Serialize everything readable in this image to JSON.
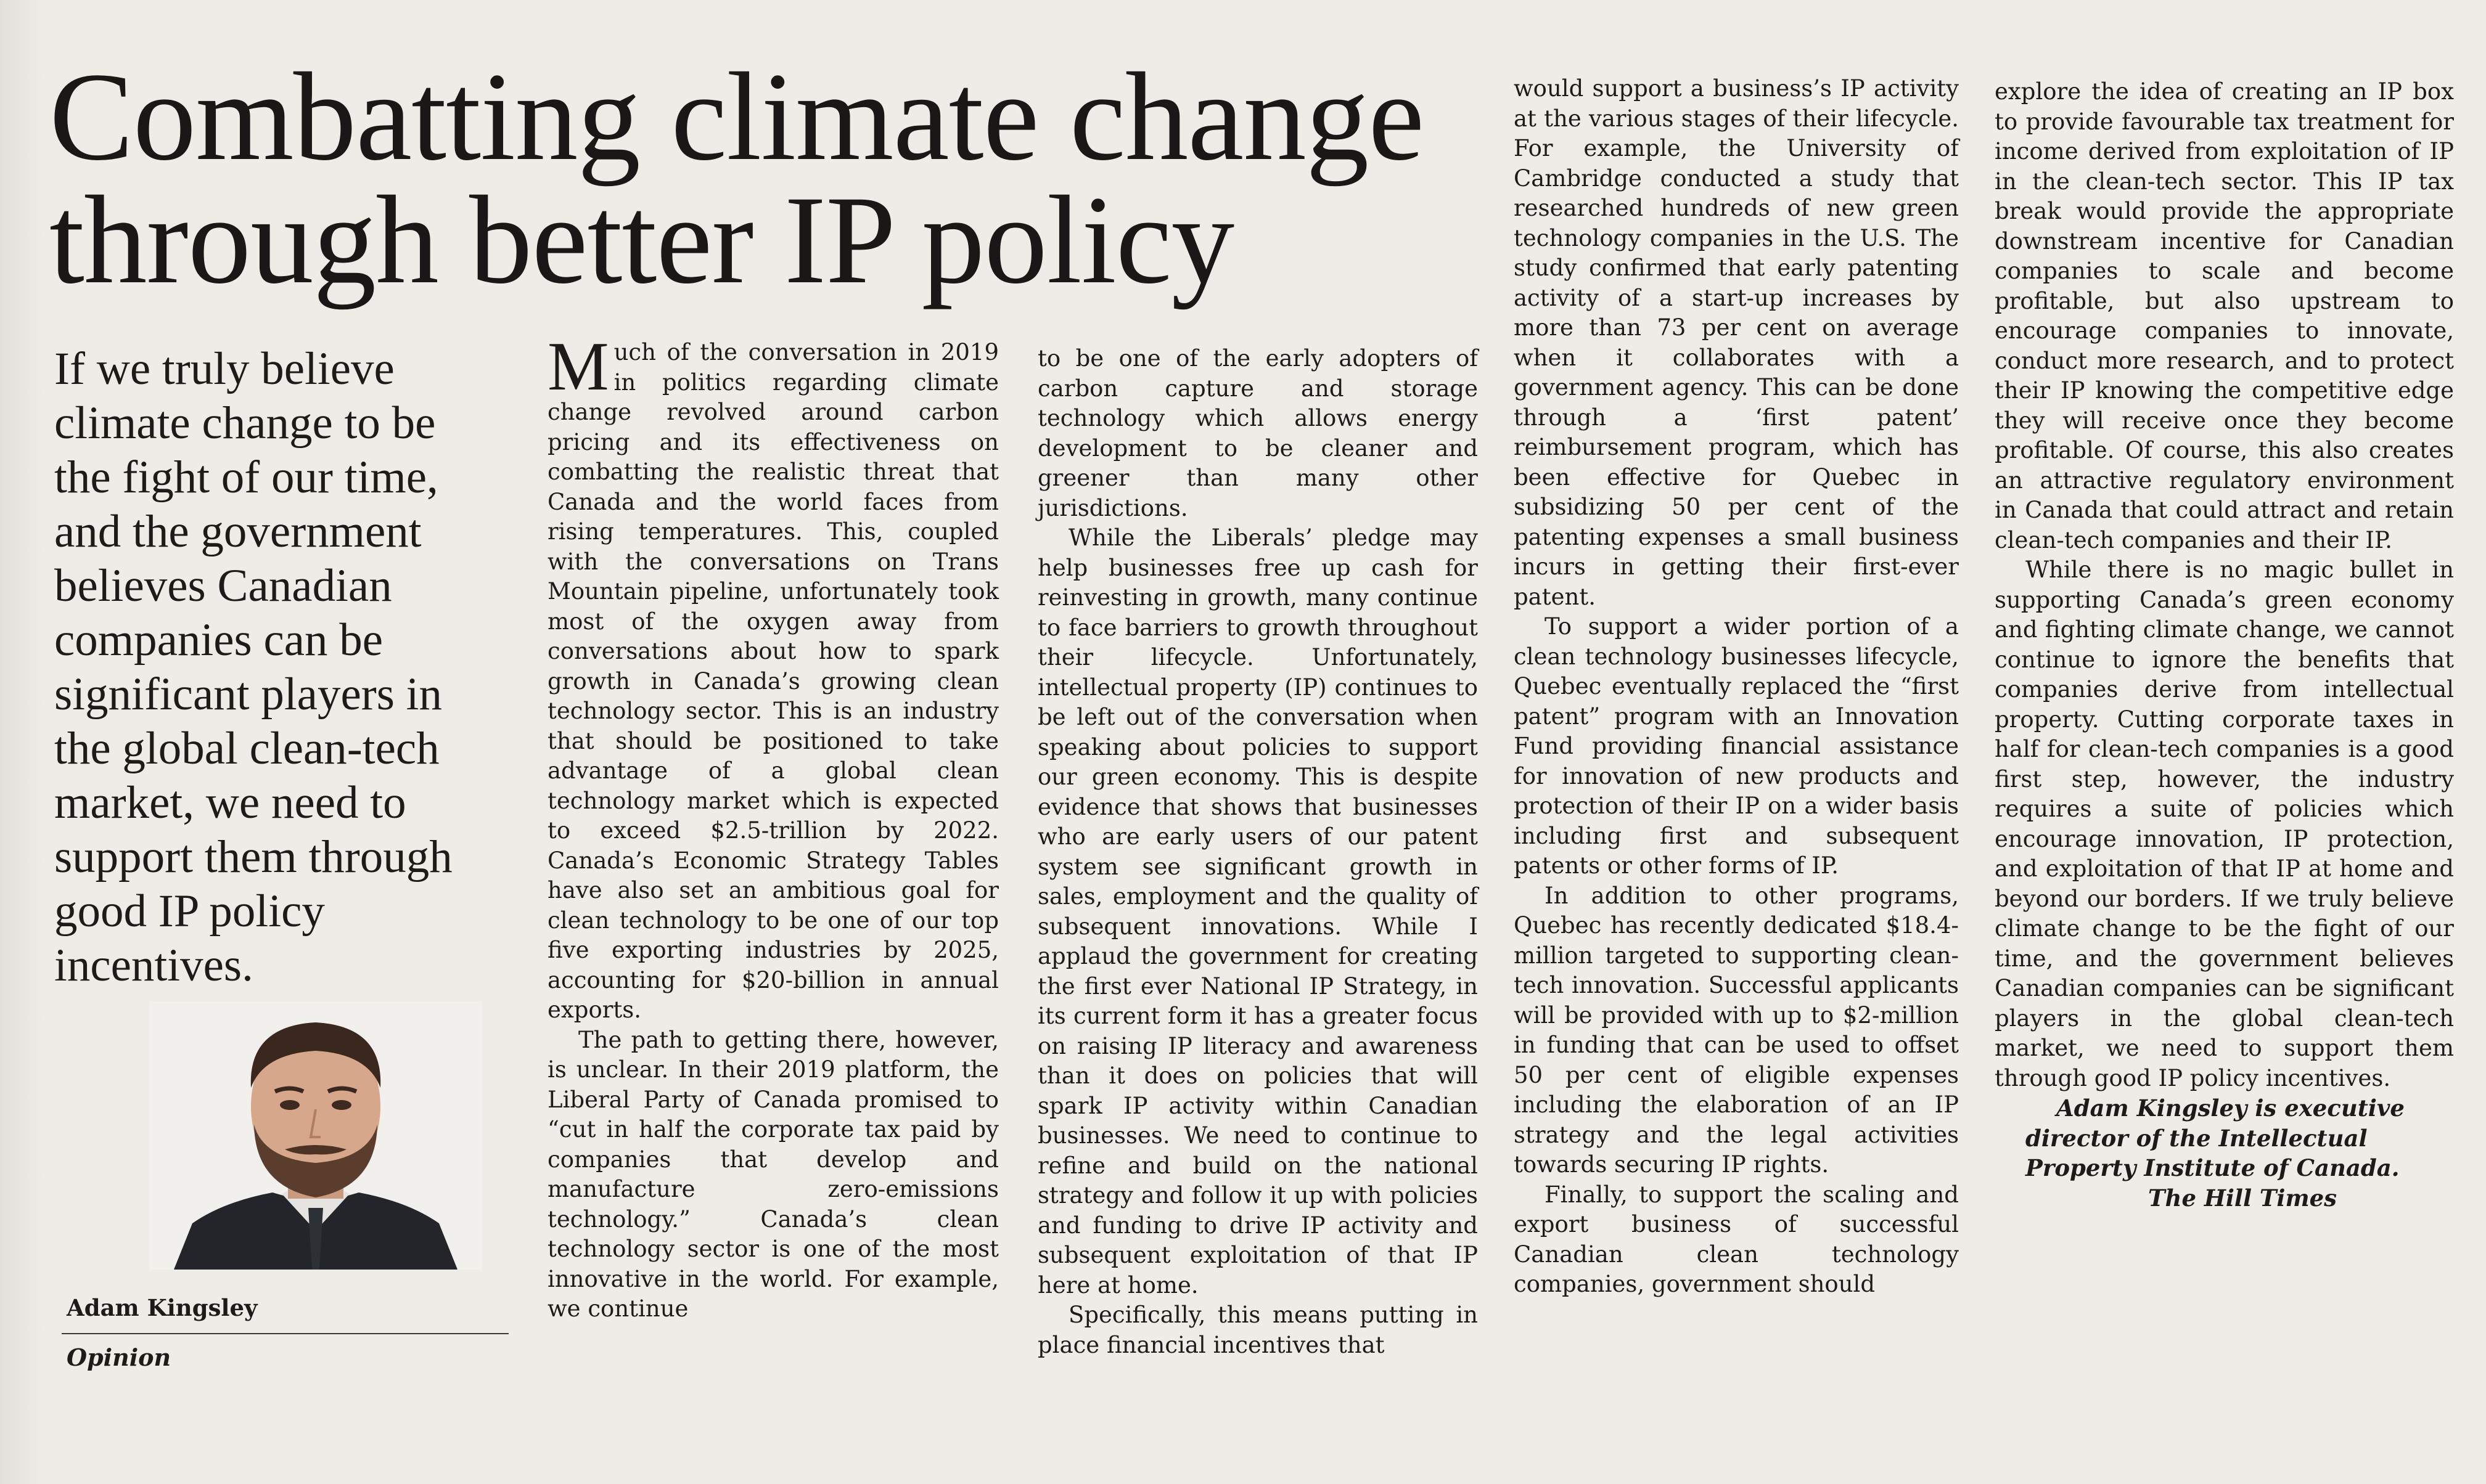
{
  "headline": {
    "line1": "Combatting climate change",
    "line2": "through better IP policy"
  },
  "deck": "If we truly believe climate change to be the fight of our time, and the government believes Canadian companies can be significant players in the global clean-tech market, we need to support them through good IP policy incentives.",
  "byline": {
    "author": "Adam Kingsley",
    "section": "Opinion"
  },
  "article": {
    "col1": {
      "dropcap": "M",
      "p1": "uch of the conversation in 2019 in politics regarding climate change revolved around carbon pricing and its effectiveness on combatting the realistic threat that Canada and the world faces from rising temperatures. This, coupled with the conversations on Trans Mountain pipeline, unfortunately took most of the oxygen away from conversations about how to spark growth in Canada’s growing clean technology sector. This is an industry that should be positioned to take advantage of a global clean technology market which is expected to exceed $2.5-trillion by 2022. Canada’s Economic Strategy Tables have also set an ambitious goal for clean technology to be one of our top five exporting industries by 2025, accounting for $20-billion in annual exports.",
      "p2": "The path to getting there, however, is unclear. In their 2019 platform, the Liberal Party of Canada promised to “cut in half the corporate tax paid by companies that develop and manufacture zero-emissions technology.” Canada’s clean technology sector is one of the most innovative in the world. For example, we continue"
    },
    "col2": {
      "p1": "to be one of the early adopters of carbon capture and storage technology which allows energy development to be cleaner and greener than many other jurisdictions.",
      "p2": "While the Liberals’ pledge may help businesses free up cash for reinvesting in growth, many continue to face barriers to growth throughout their lifecycle. Unfortunately, intellectual property (IP) continues to be left out of the conversation when speaking about policies to support our green economy. This is despite evidence that shows that businesses who are early users of our patent system see significant growth in sales, employment and the quality of subsequent innovations. While I applaud the government for creating the first ever National IP Strategy, in its current form it has a greater focus on raising IP literacy and awareness than it does on policies that will spark IP activity within Canadian businesses. We need to continue to refine and build on the national strategy and follow it up with policies and funding to drive IP activity and subsequent exploitation of that IP here at home.",
      "p3": "Specifically, this means putting in place financial incentives that"
    },
    "col3": {
      "p1": "would support a business’s IP activity at the various stages of their lifecycle. For example, the University of Cambridge conducted a study that researched hundreds of new green technology companies in the U.S. The study confirmed that early patenting activity of a start-up increases by more than 73 per cent on average when it collaborates with a government agency. This can be done through a ‘first patent’ reimbursement program, which has been effective for Quebec in subsidizing 50 per cent of the patenting expenses a small business incurs in getting their first-ever patent.",
      "p2": "To support a wider portion of a clean technology businesses lifecycle, Quebec eventually replaced the “first patent” program with an Innovation Fund providing financial assistance for innovation of new products and protection of their IP on a wider basis including first and subsequent patents or other forms of IP.",
      "p3": "In addition to other programs, Quebec has recently dedicated $18.4-million targeted to supporting clean-tech innovation. Successful applicants will be provided with up to $2-million in funding that can be used to offset 50 per cent of eligible expenses including the elaboration of an IP strategy and the legal activities towards securing IP rights.",
      "p4": "Finally, to support the scaling and export business of successful Canadian clean technology companies, government should"
    },
    "col4": {
      "p1": "explore the idea of creating an IP box to provide favourable tax treatment for income derived from exploitation of IP in the clean-tech sector. This IP tax break would provide the appropriate downstream incentive for Canadian companies to scale and become profitable, but also upstream to encourage companies to innovate, conduct more research, and to protect their IP knowing the competitive edge they will receive once they become profitable. Of course, this also creates an attractive regulatory environment in Canada that could attract and retain clean-tech companies and their IP.",
      "p2": "While there is no magic bullet in supporting Canada’s green economy and fighting climate change, we cannot continue to ignore the benefits that companies derive from intellectual property. Cutting corporate taxes in half for clean-tech companies is a good first step, however, the industry requires a suite of policies which encourage innovation, IP protection, and exploitation of that IP at home and beyond our borders. If we truly believe climate change to be the fight of our time, and the government believes Canadian companies can be significant players in the global clean-tech market, we need to support them through good IP policy incentives.",
      "signature": "Adam Kingsley is executive director of the Intellectual Property Institute of Canada.",
      "publication": "The Hill Times"
    }
  },
  "colors": {
    "paper": "#eeece6",
    "ink": "#1d1b19"
  }
}
